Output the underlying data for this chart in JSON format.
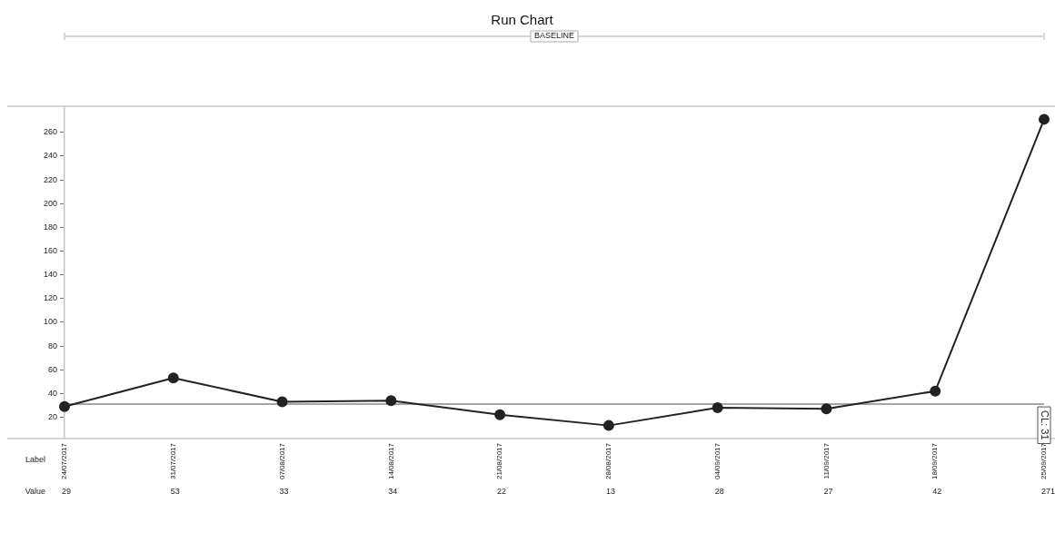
{
  "chart_data": {
    "type": "line",
    "title": "Run Chart",
    "categories": [
      "24/07/2017",
      "31/07/2017",
      "07/08/2017",
      "14/08/2017",
      "21/08/2017",
      "28/08/2017",
      "04/09/2017",
      "11/09/2017",
      "18/09/2017",
      "25/09/2017"
    ],
    "series": [
      {
        "color": "#222222",
        "values": [
          29,
          53,
          33,
          34,
          22,
          13,
          28,
          27,
          42,
          271
        ]
      }
    ],
    "ylim": [
      2,
      282
    ],
    "yticks": [
      20,
      40,
      60,
      80,
      100,
      120,
      140,
      160,
      180,
      200,
      220,
      240,
      260
    ],
    "ref_lines": [
      {
        "axis": "y",
        "value": 31,
        "label": "CL: 31",
        "color": "#888888"
      }
    ],
    "annotations": [
      "BASELINE",
      "Label",
      "Value"
    ],
    "data_labels": true,
    "marker": "circle",
    "line_style": "solid",
    "grid": false,
    "legend": false
  }
}
